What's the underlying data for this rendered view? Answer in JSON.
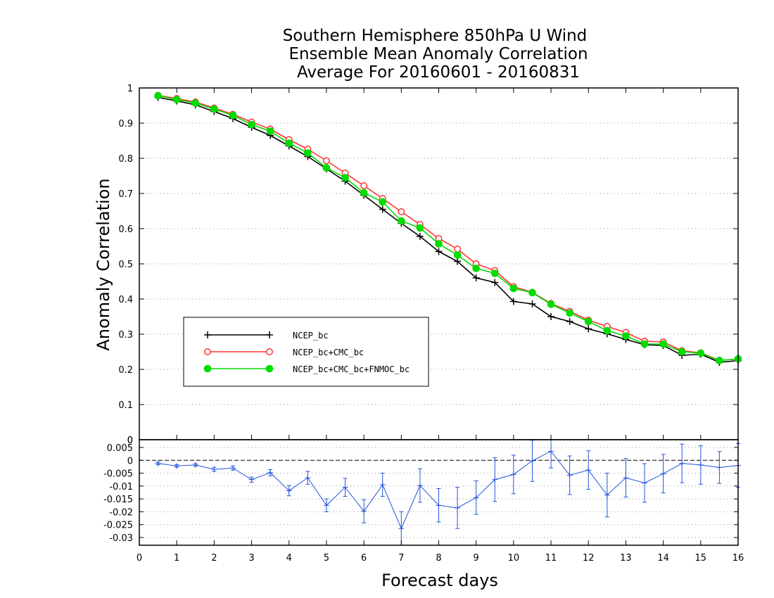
{
  "chart_data": {
    "type": "line",
    "title": [
      "Southern Hemisphere 850hPa U Wind",
      "Ensemble Mean Anomaly Correlation",
      "Average For 20160601 - 20160831"
    ],
    "xlabel": "Forecast days",
    "ylabel": "Anomaly Correlation",
    "xlim": [
      0,
      16
    ],
    "ylim": [
      0,
      1
    ],
    "x_ticks": [
      "0",
      "1",
      "2",
      "3",
      "4",
      "5",
      "6",
      "7",
      "8",
      "9",
      "10",
      "11",
      "12",
      "13",
      "14",
      "15",
      "16"
    ],
    "y_ticks": [
      "0",
      "0.1",
      "0.2",
      "0.3",
      "0.4",
      "0.5",
      "0.6",
      "0.7",
      "0.8",
      "0.9",
      "1"
    ],
    "grid": true,
    "legend_position": "lower-left",
    "x": [
      0.5,
      1,
      1.5,
      2,
      2.5,
      3,
      3.5,
      4,
      4.5,
      5,
      5.5,
      6,
      6.5,
      7,
      7.5,
      8,
      8.5,
      9,
      9.5,
      10,
      10.5,
      11,
      11.5,
      12,
      12.5,
      13,
      13.5,
      14,
      14.5,
      15,
      15.5,
      16
    ],
    "series": [
      {
        "name": "NCEP_bc",
        "color": "#000000",
        "marker": "plus",
        "values": [
          0.973,
          0.963,
          0.952,
          0.933,
          0.913,
          0.888,
          0.865,
          0.835,
          0.805,
          0.77,
          0.735,
          0.695,
          0.655,
          0.615,
          0.578,
          0.535,
          0.507,
          0.46,
          0.447,
          0.393,
          0.386,
          0.35,
          0.336,
          0.315,
          0.301,
          0.285,
          0.27,
          0.268,
          0.24,
          0.243,
          0.22,
          0.225
        ]
      },
      {
        "name": "NCEP_bc+CMC_bc",
        "color": "#ff3333",
        "marker": "open-circle",
        "values": [
          0.979,
          0.97,
          0.96,
          0.943,
          0.925,
          0.903,
          0.883,
          0.853,
          0.826,
          0.793,
          0.758,
          0.722,
          0.686,
          0.648,
          0.612,
          0.572,
          0.542,
          0.5,
          0.481,
          0.435,
          0.419,
          0.387,
          0.365,
          0.34,
          0.322,
          0.305,
          0.28,
          0.278,
          0.253,
          0.247,
          0.226,
          0.229
        ]
      },
      {
        "name": "NCEP_bc+CMC_bc+FNMOC_bc",
        "color": "#00dd00",
        "marker": "filled-circle",
        "values": [
          0.978,
          0.967,
          0.957,
          0.94,
          0.922,
          0.896,
          0.877,
          0.843,
          0.815,
          0.773,
          0.745,
          0.702,
          0.676,
          0.622,
          0.602,
          0.557,
          0.525,
          0.487,
          0.473,
          0.43,
          0.418,
          0.385,
          0.36,
          0.336,
          0.31,
          0.295,
          0.272,
          0.272,
          0.25,
          0.246,
          0.225,
          0.23
        ]
      }
    ],
    "difference_panel": {
      "type": "line-errorbar",
      "ylim": [
        -0.033,
        0.008
      ],
      "y_ticks": [
        "0.005",
        "0",
        "-0.005",
        "-0.01",
        "-0.015",
        "-0.02",
        "-0.025",
        "-0.03"
      ],
      "y_tick_values": [
        0.005,
        0,
        -0.005,
        -0.01,
        -0.015,
        -0.02,
        -0.025,
        -0.03
      ],
      "color": "#2255dd",
      "values": [
        -0.0012,
        -0.0022,
        -0.0018,
        -0.0035,
        -0.003,
        -0.0075,
        -0.0048,
        -0.0118,
        -0.0068,
        -0.0175,
        -0.0105,
        -0.0198,
        -0.0095,
        -0.0265,
        -0.0098,
        -0.0175,
        -0.0185,
        -0.0145,
        -0.0075,
        -0.0055,
        -0.0002,
        0.0035,
        -0.0058,
        -0.0038,
        -0.0135,
        -0.0068,
        -0.0088,
        -0.0052,
        -0.0012,
        -0.0018,
        -0.0028,
        -0.002
      ],
      "errors": [
        0.0005,
        0.0005,
        0.0005,
        0.0008,
        0.0008,
        0.001,
        0.0012,
        0.002,
        0.0025,
        0.0025,
        0.0035,
        0.0045,
        0.0045,
        0.0065,
        0.0065,
        0.0065,
        0.008,
        0.0065,
        0.0085,
        0.0075,
        0.008,
        0.0065,
        0.0075,
        0.0075,
        0.0085,
        0.0075,
        0.0075,
        0.0075,
        0.0075,
        0.0075,
        0.0062,
        0.0085
      ]
    }
  }
}
